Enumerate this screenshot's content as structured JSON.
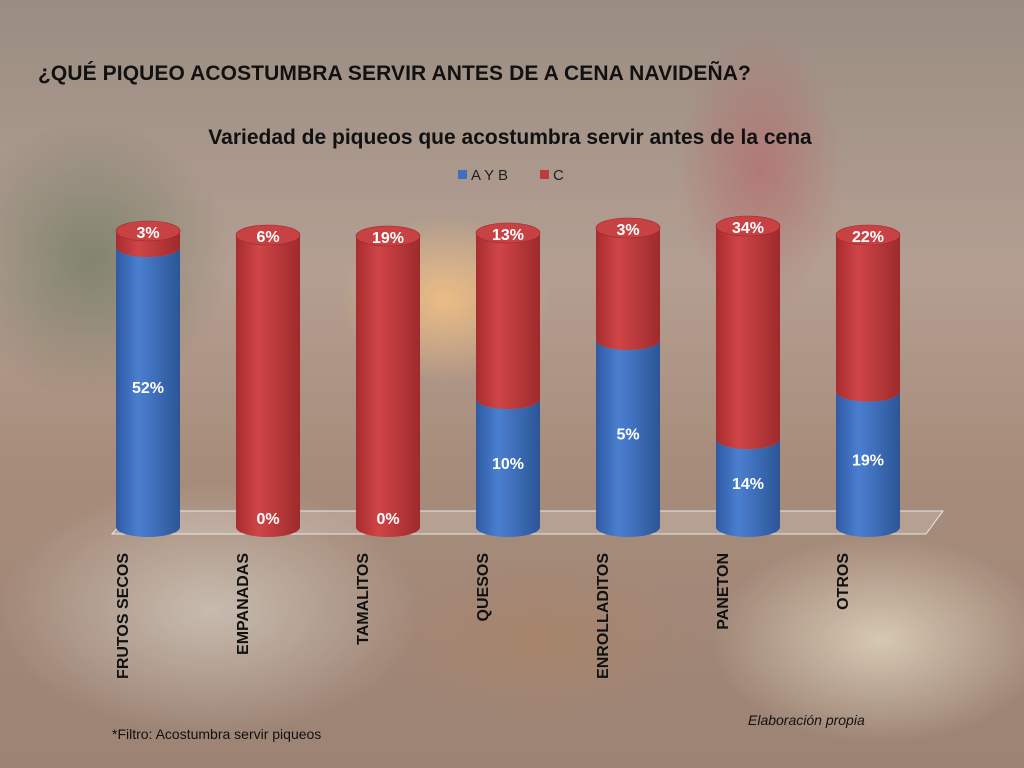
{
  "slide": {
    "heading": "¿QUÉ PIQUEO ACOSTUMBRA SERVIR ANTES DE A CENA NAVIDEÑA?",
    "footnote": "*Filtro: Acostumbra servir piqueos",
    "credit": "Elaboración propia"
  },
  "chart_data": {
    "type": "bar",
    "stacked": true,
    "title": "Variedad de piqueos que acostumbra servir antes de la cena",
    "legend_position": "top",
    "categories": [
      "FRUTOS SECOS",
      "EMPANADAS",
      "TAMALITOS",
      "QUESOS",
      "ENROLLADITOS",
      "PANETON",
      "OTROS"
    ],
    "series": [
      {
        "name": "A Y B",
        "color": "#3F6FBF",
        "values": [
          52,
          0,
          0,
          10,
          5,
          14,
          19
        ],
        "labels": [
          "52%",
          "0%",
          "0%",
          "10%",
          "5%",
          "14%",
          "19%"
        ]
      },
      {
        "name": "C",
        "color": "#C0393B",
        "values": [
          3,
          6,
          19,
          13,
          3,
          34,
          22
        ],
        "labels": [
          "3%",
          "6%",
          "19%",
          "13%",
          "3%",
          "34%",
          "22%"
        ]
      }
    ]
  }
}
